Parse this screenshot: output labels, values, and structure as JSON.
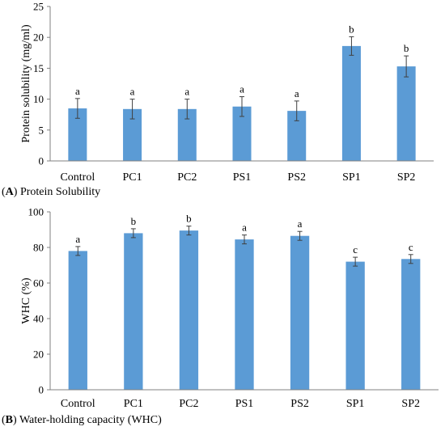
{
  "colors": {
    "bar": "#5B9BD5",
    "axis": "#808080",
    "error": "#404040"
  },
  "panels": [
    {
      "caption_letter": "A",
      "caption_text": "Protein Solubility"
    },
    {
      "caption_letter": "B",
      "caption_text": "Water-holding capacity (WHC)"
    }
  ],
  "chart_data": [
    {
      "type": "bar",
      "categories": [
        "Control",
        "PC1",
        "PC2",
        "PS1",
        "PS2",
        "SP1",
        "SP2"
      ],
      "values": [
        8.5,
        8.4,
        8.4,
        8.8,
        8.1,
        18.6,
        15.3
      ],
      "errors": [
        1.6,
        1.6,
        1.6,
        1.6,
        1.6,
        1.5,
        1.7
      ],
      "significance": [
        "a",
        "a",
        "a",
        "a",
        "a",
        "b",
        "b"
      ],
      "title": "",
      "xlabel": "",
      "ylabel": "Protein solubility (mg/ml)",
      "ylim": [
        0,
        25
      ],
      "yticks": [
        0,
        5,
        10,
        15,
        20,
        25
      ],
      "grid": false
    },
    {
      "type": "bar",
      "categories": [
        "Control",
        "PC1",
        "PC2",
        "PS1",
        "PS2",
        "SP1",
        "SP2"
      ],
      "values": [
        78,
        88,
        89.5,
        84.5,
        86.5,
        72,
        73.5
      ],
      "errors": [
        2.5,
        2.5,
        2.5,
        2.5,
        2.5,
        2.5,
        2.5
      ],
      "significance": [
        "a",
        "b",
        "b",
        "a",
        "a",
        "c",
        "c"
      ],
      "title": "",
      "xlabel": "",
      "ylabel": "WHC (%)",
      "ylim": [
        0,
        100
      ],
      "yticks": [
        0,
        20,
        40,
        60,
        80,
        100
      ],
      "grid": false
    }
  ]
}
